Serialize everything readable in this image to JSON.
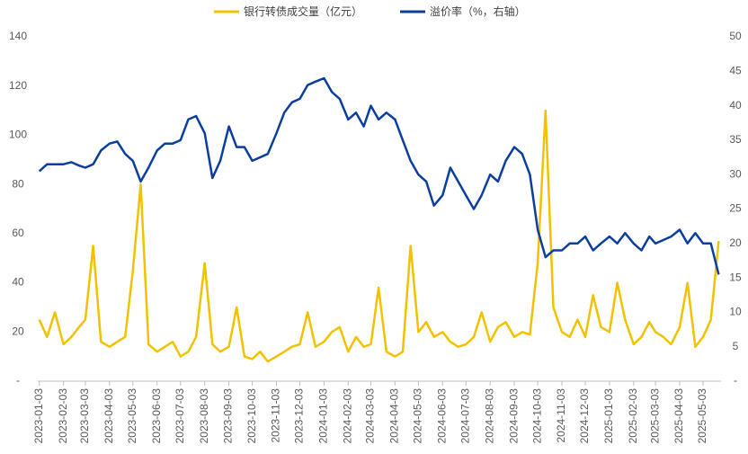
{
  "chart_data": {
    "type": "line",
    "x": [
      "2023-01-03",
      "2023-01-13",
      "2023-01-23",
      "2023-02-03",
      "2023-02-13",
      "2023-02-23",
      "2023-03-03",
      "2023-03-13",
      "2023-03-23",
      "2023-04-03",
      "2023-04-13",
      "2023-04-23",
      "2023-05-03",
      "2023-05-13",
      "2023-05-23",
      "2023-06-03",
      "2023-06-13",
      "2023-06-23",
      "2023-07-03",
      "2023-07-13",
      "2023-07-23",
      "2023-08-03",
      "2023-08-13",
      "2023-08-23",
      "2023-09-03",
      "2023-09-13",
      "2023-09-23",
      "2023-10-03",
      "2023-10-13",
      "2023-10-23",
      "2023-11-03",
      "2023-11-13",
      "2023-11-23",
      "2023-12-03",
      "2023-12-13",
      "2023-12-23",
      "2024-01-03",
      "2024-01-13",
      "2024-01-23",
      "2024-02-03",
      "2024-02-13",
      "2024-02-23",
      "2024-03-03",
      "2024-03-13",
      "2024-03-23",
      "2024-04-03",
      "2024-04-13",
      "2024-04-23",
      "2024-05-03",
      "2024-05-13",
      "2024-05-23",
      "2024-06-03",
      "2024-06-13",
      "2024-06-23",
      "2024-07-03",
      "2024-07-13",
      "2024-07-23",
      "2024-08-03",
      "2024-08-13",
      "2024-08-23",
      "2024-09-03",
      "2024-09-13",
      "2024-09-23",
      "2024-10-03",
      "2024-10-13",
      "2024-10-23",
      "2024-11-03",
      "2024-11-13",
      "2024-11-23",
      "2024-12-03",
      "2024-12-13",
      "2024-12-23",
      "2025-01-03",
      "2025-01-13",
      "2025-01-23",
      "2025-02-03",
      "2025-02-13",
      "2025-02-23",
      "2025-03-03",
      "2025-03-13",
      "2025-03-23",
      "2025-04-03",
      "2025-04-13",
      "2025-04-23",
      "2025-05-03",
      "2025-05-13",
      "2025-05-23"
    ],
    "series": [
      {
        "name": "银行转债成交量（亿元）",
        "color": "#f2c200",
        "values": [
          25,
          18,
          28,
          15,
          18,
          22,
          25,
          55,
          16,
          14,
          16,
          18,
          45,
          80,
          15,
          12,
          14,
          16,
          10,
          12,
          18,
          48,
          15,
          12,
          14,
          30,
          10,
          9,
          12,
          8,
          10,
          12,
          14,
          15,
          28,
          14,
          16,
          20,
          22,
          12,
          18,
          14,
          15,
          38,
          12,
          10,
          12,
          55,
          20,
          24,
          18,
          20,
          16,
          14,
          15,
          18,
          28,
          16,
          22,
          24,
          18,
          20,
          19,
          48,
          110,
          30,
          20,
          18,
          25,
          18,
          35,
          22,
          20,
          40,
          25,
          15,
          18,
          24,
          20,
          18,
          15,
          22,
          40,
          14,
          18,
          25,
          57
        ]
      },
      {
        "name": "溢价率（%，右轴）",
        "color": "#0b3f9e",
        "axis": "y2",
        "values": [
          30.5,
          31.5,
          31.5,
          31.5,
          31.8,
          31.3,
          31,
          31.5,
          33.5,
          34.5,
          34.8,
          33,
          32,
          29,
          31,
          33.5,
          34.5,
          34.5,
          35,
          38,
          38.5,
          36,
          29.5,
          32,
          37,
          34,
          34,
          32,
          32.5,
          33,
          36,
          39,
          40.5,
          41,
          43,
          43.5,
          44,
          42,
          41,
          38,
          39,
          37,
          40,
          38,
          39,
          38,
          35,
          32,
          30,
          29,
          25.5,
          27,
          31,
          29,
          27,
          25,
          27,
          30,
          29,
          32,
          34,
          33,
          30,
          22,
          18,
          19,
          19,
          20,
          20,
          21,
          19,
          20,
          21,
          20,
          21.5,
          20,
          19,
          21,
          20,
          20.5,
          21,
          22,
          20,
          21.5,
          20,
          20,
          15.5
        ]
      }
    ],
    "xlim": [
      "2023-01-01",
      "2025-05-26"
    ],
    "xticks": [
      "2023-01-03",
      "2023-02-03",
      "2023-03-03",
      "2023-04-03",
      "2023-05-03",
      "2023-06-03",
      "2023-07-03",
      "2023-08-03",
      "2023-09-03",
      "2023-10-03",
      "2023-11-03",
      "2023-12-03",
      "2024-01-03",
      "2024-02-03",
      "2024-03-03",
      "2024-04-03",
      "2024-05-03",
      "2024-06-03",
      "2024-07-03",
      "2024-08-03",
      "2024-09-03",
      "2024-10-03",
      "2024-11-03",
      "2024-12-03",
      "2025-01-03",
      "2025-02-03",
      "2025-03-03",
      "2025-04-03",
      "2025-05-03"
    ],
    "ylim": [
      0,
      140
    ],
    "yticks": [
      {
        "value": 0,
        "label": "-"
      },
      20,
      40,
      60,
      80,
      100,
      120,
      140
    ],
    "y2lim": [
      0,
      50
    ],
    "y2ticks": [
      {
        "value": 0,
        "label": "-"
      },
      5,
      10,
      15,
      20,
      25,
      30,
      35,
      40,
      45,
      50
    ],
    "legend": "top"
  }
}
